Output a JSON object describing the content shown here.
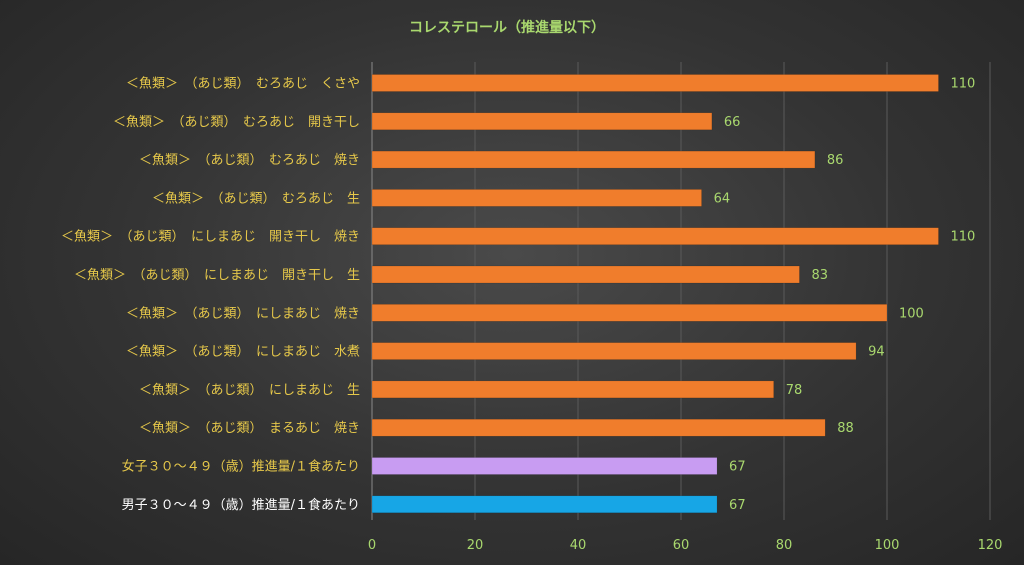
{
  "chart_data": {
    "type": "bar",
    "orientation": "horizontal",
    "title": "コレステロール（推進量以下）",
    "categories": [
      "＜魚類＞　（あじ類）　むろあじ　くさや",
      "＜魚類＞　（あじ類）　むろあじ　開き干し",
      "＜魚類＞　（あじ類）　むろあじ　焼き",
      "＜魚類＞　（あじ類）　むろあじ　生",
      "＜魚類＞　（あじ類）　にしまあじ　開き干し　焼き",
      "＜魚類＞　（あじ類）　にしまあじ　開き干し　生",
      "＜魚類＞　（あじ類）　にしまあじ　焼き",
      "＜魚類＞　（あじ類）　にしまあじ　水煮",
      "＜魚類＞　（あじ類）　にしまあじ　生",
      "＜魚類＞　（あじ類）　まるあじ　焼き",
      "女子３０～４９（歳）推進量/１食あたり",
      "男子３０～４９（歳）推進量/１食あたり"
    ],
    "values": [
      110,
      66,
      86,
      64,
      110,
      83,
      100,
      94,
      78,
      88,
      67,
      67
    ],
    "bar_colors": [
      "#f07d2c",
      "#f07d2c",
      "#f07d2c",
      "#f07d2c",
      "#f07d2c",
      "#f07d2c",
      "#f07d2c",
      "#f07d2c",
      "#f07d2c",
      "#f07d2c",
      "#c89cf2",
      "#17a6e6"
    ],
    "label_colors": [
      "#e6c84a",
      "#e6c84a",
      "#e6c84a",
      "#e6c84a",
      "#e6c84a",
      "#e6c84a",
      "#e6c84a",
      "#e6c84a",
      "#e6c84a",
      "#e6c84a",
      "#e6c84a",
      "#ffffff"
    ],
    "xlim": [
      0,
      120
    ],
    "xticks": [
      0,
      20,
      40,
      60,
      80,
      100,
      120
    ],
    "grid": true,
    "data_labels": true
  }
}
